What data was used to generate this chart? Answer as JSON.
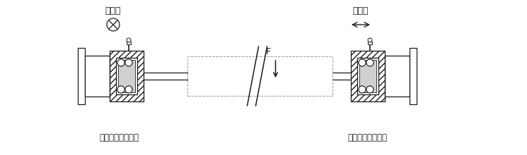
{
  "bg_color": "#ffffff",
  "line_color": "#1a1a1a",
  "gray_color": "#888888",
  "dash_color": "#999999",
  "title_fixed": "固定式",
  "title_movable": "可動式",
  "label_fixed": "ベアリングは固定",
  "label_movable": "ベアリングは可動",
  "force_label": "F",
  "fig_width": 7.45,
  "fig_height": 2.2,
  "dpi": 100,
  "lw": 0.9
}
